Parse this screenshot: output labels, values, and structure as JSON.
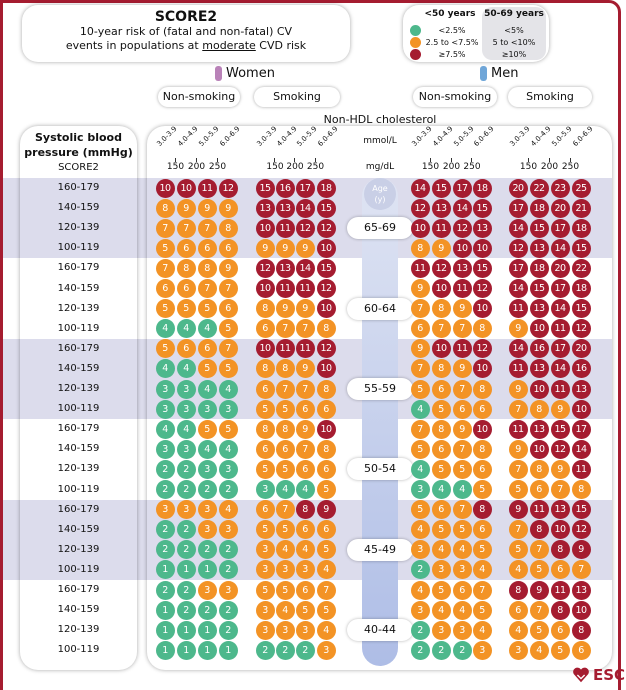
{
  "title": {
    "main": "SCORE2",
    "line1": "10-year risk of (fatal and non-fatal) CV",
    "line2_pre": "events in populations at ",
    "line2_emph": "moderate",
    "line2_post": " CVD risk"
  },
  "legend": {
    "col_under50": "<50 years",
    "col_50to69": "50-69 years",
    "green_under50": "<2.5%",
    "orange_under50": "2.5 to <7.5%",
    "red_under50": "≥7.5%",
    "green_50to69": "<5%",
    "orange_50to69": "5 to <10%",
    "red_50to69": "≥10%",
    "thresholds_under50": [
      2.5,
      7.5
    ],
    "thresholds_50to69": [
      5,
      10
    ],
    "colors": {
      "green": "#4db88c",
      "orange": "#f39325",
      "red": "#a51c30"
    }
  },
  "women": {
    "label": "Women",
    "color": "#b982b8",
    "non_smoking": "Non-smoking",
    "smoking": "Smoking"
  },
  "men": {
    "label": "Men",
    "color": "#6fa6d8",
    "non_smoking": "Non-smoking",
    "smoking": "Smoking"
  },
  "axis": {
    "cholesterol_title": "Non-HDL cholesterol",
    "mmol_unit": "mmol/L",
    "mg_unit": "mg/dL",
    "mmol_ticks": [
      "3.0-3.9",
      "4.0-4.9",
      "5.0-5.9",
      "6.0-6.9"
    ],
    "mg_ticks": [
      "150",
      "200",
      "250"
    ],
    "sbp_title_1": "Systolic blood",
    "sbp_title_2": "pressure (mmHg)",
    "sbp_sub": "SCORE2",
    "age_label_1": "Age",
    "age_label_2": "(y)"
  },
  "logo": "ESC",
  "chart_data": {
    "type": "table",
    "title": "SCORE2",
    "columns": [
      "women_non_smoking",
      "women_smoking",
      "men_non_smoking",
      "men_smoking"
    ],
    "cholesterol_categories_mmol": [
      "3.0-3.9",
      "4.0-4.9",
      "5.0-5.9",
      "6.0-6.9"
    ],
    "groups": [
      {
        "age": "65-69",
        "band": "50to69",
        "shaded": true,
        "rows": [
          {
            "sbp": "160-179",
            "wn": [
              10,
              10,
              11,
              12
            ],
            "ws": [
              15,
              16,
              17,
              18
            ],
            "mn": [
              14,
              15,
              17,
              18
            ],
            "ms": [
              20,
              22,
              23,
              25
            ]
          },
          {
            "sbp": "140-159",
            "wn": [
              8,
              9,
              9,
              9
            ],
            "ws": [
              13,
              13,
              14,
              15
            ],
            "mn": [
              12,
              13,
              14,
              15
            ],
            "ms": [
              17,
              18,
              20,
              21
            ]
          },
          {
            "sbp": "120-139",
            "wn": [
              7,
              7,
              7,
              8
            ],
            "ws": [
              10,
              11,
              12,
              12
            ],
            "mn": [
              10,
              11,
              12,
              13
            ],
            "ms": [
              14,
              15,
              17,
              18
            ]
          },
          {
            "sbp": "100-119",
            "wn": [
              5,
              6,
              6,
              6
            ],
            "ws": [
              9,
              9,
              9,
              10
            ],
            "mn": [
              8,
              9,
              10,
              10
            ],
            "ms": [
              12,
              13,
              14,
              15
            ]
          }
        ]
      },
      {
        "age": "60-64",
        "band": "50to69",
        "shaded": false,
        "rows": [
          {
            "sbp": "160-179",
            "wn": [
              7,
              8,
              8,
              9
            ],
            "ws": [
              12,
              13,
              14,
              15
            ],
            "mn": [
              11,
              12,
              13,
              15
            ],
            "ms": [
              17,
              18,
              20,
              22
            ]
          },
          {
            "sbp": "140-159",
            "wn": [
              6,
              6,
              7,
              7
            ],
            "ws": [
              10,
              11,
              11,
              12
            ],
            "mn": [
              9,
              10,
              11,
              12
            ],
            "ms": [
              14,
              15,
              17,
              18
            ]
          },
          {
            "sbp": "120-139",
            "wn": [
              5,
              5,
              5,
              6
            ],
            "ws": [
              8,
              9,
              9,
              10
            ],
            "mn": [
              7,
              8,
              9,
              10
            ],
            "ms": [
              11,
              13,
              14,
              15
            ]
          },
          {
            "sbp": "100-119",
            "wn": [
              4,
              4,
              4,
              5
            ],
            "ws": [
              6,
              7,
              7,
              8
            ],
            "mn": [
              6,
              7,
              7,
              8
            ],
            "ms": [
              9,
              10,
              11,
              12
            ]
          }
        ]
      },
      {
        "age": "55-59",
        "band": "50to69",
        "shaded": true,
        "rows": [
          {
            "sbp": "160-179",
            "wn": [
              5,
              6,
              6,
              7
            ],
            "ws": [
              10,
              11,
              11,
              12
            ],
            "mn": [
              9,
              10,
              11,
              12
            ],
            "ms": [
              14,
              16,
              17,
              20
            ]
          },
          {
            "sbp": "140-159",
            "wn": [
              4,
              4,
              5,
              5
            ],
            "ws": [
              8,
              8,
              9,
              10
            ],
            "mn": [
              7,
              8,
              9,
              10
            ],
            "ms": [
              11,
              13,
              14,
              16
            ]
          },
          {
            "sbp": "120-139",
            "wn": [
              3,
              3,
              4,
              4
            ],
            "ws": [
              6,
              7,
              7,
              8
            ],
            "mn": [
              5,
              6,
              7,
              8
            ],
            "ms": [
              9,
              10,
              11,
              13
            ]
          },
          {
            "sbp": "100-119",
            "wn": [
              3,
              3,
              3,
              3
            ],
            "ws": [
              5,
              5,
              6,
              6
            ],
            "mn": [
              4,
              5,
              6,
              6
            ],
            "ms": [
              7,
              8,
              9,
              10
            ]
          }
        ]
      },
      {
        "age": "50-54",
        "band": "50to69",
        "shaded": false,
        "rows": [
          {
            "sbp": "160-179",
            "wn": [
              4,
              4,
              5,
              5
            ],
            "ws": [
              8,
              8,
              9,
              10
            ],
            "mn": [
              7,
              8,
              9,
              10
            ],
            "ms": [
              11,
              13,
              15,
              17
            ]
          },
          {
            "sbp": "140-159",
            "wn": [
              3,
              3,
              4,
              4
            ],
            "ws": [
              6,
              6,
              7,
              8
            ],
            "mn": [
              5,
              6,
              7,
              8
            ],
            "ms": [
              9,
              10,
              12,
              14
            ]
          },
          {
            "sbp": "120-139",
            "wn": [
              2,
              2,
              3,
              3
            ],
            "ws": [
              5,
              5,
              6,
              6
            ],
            "mn": [
              4,
              5,
              5,
              6
            ],
            "ms": [
              7,
              8,
              9,
              11
            ]
          },
          {
            "sbp": "100-119",
            "wn": [
              2,
              2,
              2,
              2
            ],
            "ws": [
              3,
              4,
              4,
              5
            ],
            "mn": [
              3,
              4,
              4,
              5
            ],
            "ms": [
              5,
              6,
              7,
              8
            ]
          }
        ]
      },
      {
        "age": "45-49",
        "band": "under50",
        "shaded": true,
        "rows": [
          {
            "sbp": "160-179",
            "wn": [
              3,
              3,
              3,
              4
            ],
            "ws": [
              6,
              7,
              8,
              9
            ],
            "mn": [
              5,
              6,
              7,
              8
            ],
            "ms": [
              9,
              11,
              13,
              15
            ]
          },
          {
            "sbp": "140-159",
            "wn": [
              2,
              2,
              3,
              3
            ],
            "ws": [
              5,
              5,
              6,
              6
            ],
            "mn": [
              4,
              5,
              5,
              6
            ],
            "ms": [
              7,
              8,
              10,
              12
            ]
          },
          {
            "sbp": "120-139",
            "wn": [
              2,
              2,
              2,
              2
            ],
            "ws": [
              3,
              4,
              4,
              5
            ],
            "mn": [
              3,
              4,
              4,
              5
            ],
            "ms": [
              5,
              7,
              8,
              9
            ]
          },
          {
            "sbp": "100-119",
            "wn": [
              1,
              1,
              1,
              2
            ],
            "ws": [
              3,
              3,
              3,
              4
            ],
            "mn": [
              2,
              3,
              3,
              4
            ],
            "ms": [
              4,
              5,
              6,
              7
            ]
          }
        ]
      },
      {
        "age": "40-44",
        "band": "under50",
        "shaded": false,
        "rows": [
          {
            "sbp": "160-179",
            "wn": [
              2,
              2,
              3,
              3
            ],
            "ws": [
              5,
              5,
              6,
              7
            ],
            "mn": [
              4,
              5,
              6,
              7
            ],
            "ms": [
              8,
              9,
              11,
              13
            ]
          },
          {
            "sbp": "140-159",
            "wn": [
              1,
              2,
              2,
              2
            ],
            "ws": [
              3,
              4,
              5,
              5
            ],
            "mn": [
              3,
              4,
              4,
              5
            ],
            "ms": [
              6,
              7,
              8,
              10
            ]
          },
          {
            "sbp": "120-139",
            "wn": [
              1,
              1,
              1,
              2
            ],
            "ws": [
              3,
              3,
              3,
              4
            ],
            "mn": [
              2,
              3,
              3,
              4
            ],
            "ms": [
              4,
              5,
              6,
              8
            ]
          },
          {
            "sbp": "100-119",
            "wn": [
              1,
              1,
              1,
              1
            ],
            "ws": [
              2,
              2,
              2,
              3
            ],
            "mn": [
              2,
              2,
              2,
              3
            ],
            "ms": [
              3,
              4,
              5,
              6
            ]
          }
        ]
      }
    ]
  }
}
